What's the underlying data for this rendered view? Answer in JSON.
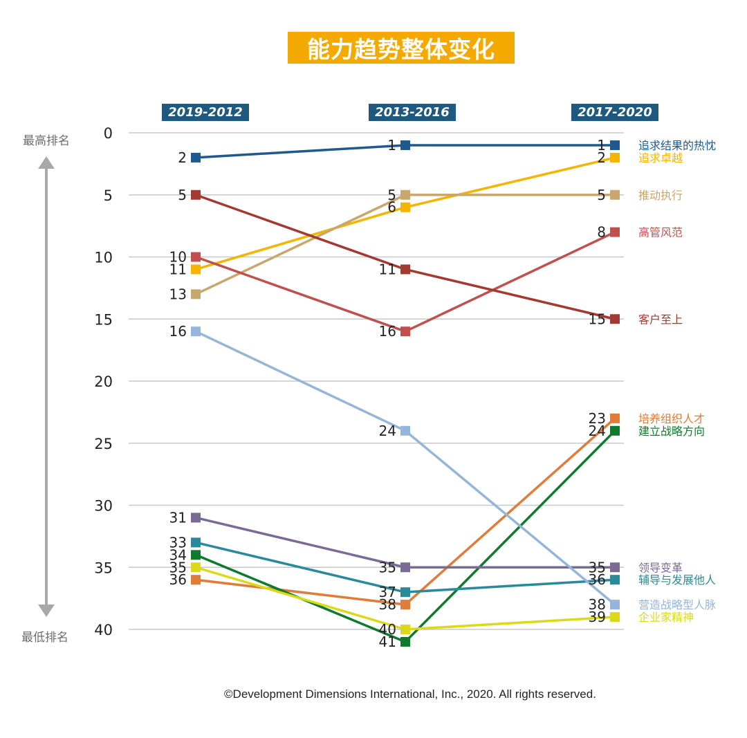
{
  "title": "能力趋势整体变化",
  "hints": {
    "top": "最高排名",
    "bottom": "最低排名"
  },
  "footer": "©Development Dimensions International, Inc., 2020. All rights reserved.",
  "chart_data": {
    "type": "line",
    "categories": [
      "2019-2012",
      "2013-2016",
      "2017-2020"
    ],
    "y_axis": {
      "ticks": [
        0,
        5,
        10,
        15,
        20,
        25,
        30,
        35,
        40
      ],
      "range": [
        0,
        40
      ],
      "inverted": true
    },
    "grid": true,
    "series": [
      {
        "name": "追求结果的热忱",
        "color": "#1f5a8e",
        "values": [
          2,
          1,
          1
        ],
        "labels": [
          "2",
          "1",
          "1"
        ]
      },
      {
        "name": "追求卓越",
        "color": "#f4b400",
        "values": [
          11,
          6,
          2
        ],
        "labels": [
          "11",
          "6",
          "2"
        ]
      },
      {
        "name": "推动执行",
        "color": "#c9a66b",
        "values": [
          13,
          5,
          5
        ],
        "labels": [
          "13",
          "5",
          "5"
        ]
      },
      {
        "name": "高管风范",
        "color": "#c0504d",
        "values": [
          10,
          16,
          8
        ],
        "labels": [
          "10",
          "16",
          "8"
        ]
      },
      {
        "name": "客户至上",
        "color": "#a23a32",
        "values": [
          5,
          11,
          15
        ],
        "labels": [
          "5",
          "11",
          "15"
        ]
      },
      {
        "name": "培养组织人才",
        "color": "#e07b39",
        "values": [
          36,
          38,
          23
        ],
        "labels": [
          "36",
          "38",
          "23"
        ]
      },
      {
        "name": "建立战略方向",
        "color": "#0f7a2e",
        "values": [
          34,
          41,
          24
        ],
        "labels": [
          "34",
          "41",
          "24"
        ]
      },
      {
        "name": "领导变革",
        "color": "#7a6a96",
        "values": [
          31,
          35,
          35
        ],
        "labels": [
          "31",
          "35",
          "35"
        ]
      },
      {
        "name": "辅导与发展他人",
        "color": "#2a8a9a",
        "values": [
          33,
          37,
          36
        ],
        "labels": [
          "33",
          "37",
          "36"
        ]
      },
      {
        "name": "营造战略型人脉",
        "color": "#95b6d8",
        "values": [
          16,
          24,
          38
        ],
        "labels": [
          "16",
          "24",
          "38"
        ]
      },
      {
        "name": "企业家精神",
        "color": "#dada1a",
        "values": [
          35,
          40,
          39
        ],
        "labels": [
          "35",
          "40",
          "39"
        ]
      }
    ]
  }
}
